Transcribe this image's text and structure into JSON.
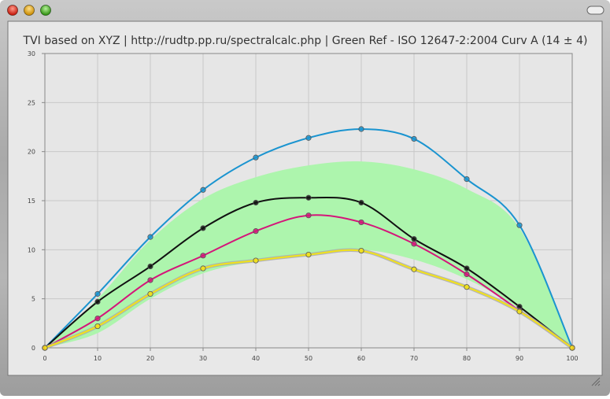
{
  "chart_data": {
    "type": "line",
    "title": "TVI based on XYZ | http://rudtp.pp.ru/spectralcalc.php | Green Ref - ISO 12647-2:2004 Curv A (14 ± 4)",
    "x": [
      0,
      10,
      20,
      30,
      40,
      50,
      60,
      70,
      80,
      90,
      100
    ],
    "xlim": [
      0,
      100
    ],
    "xticks": [
      0,
      10,
      20,
      30,
      40,
      50,
      60,
      70,
      80,
      90,
      100
    ],
    "ylim": [
      0,
      30
    ],
    "yticks": [
      0,
      5,
      10,
      15,
      20,
      25,
      30
    ],
    "grid": true,
    "band": {
      "color": "#adf5ad",
      "upper": [
        0,
        5.0,
        11.0,
        15.2,
        17.4,
        18.6,
        19.0,
        18.2,
        16.2,
        12.2,
        0
      ],
      "lower": [
        0,
        1.5,
        5.0,
        7.6,
        8.8,
        9.4,
        10.0,
        9.0,
        7.0,
        4.0,
        0
      ]
    },
    "series": [
      {
        "color": "#1a94d0",
        "values": [
          0,
          5.5,
          11.3,
          16.1,
          19.4,
          21.4,
          22.3,
          21.3,
          17.2,
          12.5,
          0
        ]
      },
      {
        "color": "#111111",
        "values": [
          0,
          4.7,
          8.3,
          12.2,
          14.8,
          15.3,
          14.8,
          11.1,
          8.1,
          4.2,
          0
        ]
      },
      {
        "color": "#d4157a",
        "values": [
          0,
          3.0,
          6.9,
          9.4,
          11.9,
          13.5,
          12.8,
          10.6,
          7.5,
          3.8,
          0
        ]
      },
      {
        "color": "#f2e21a",
        "values": [
          0,
          2.2,
          5.5,
          8.1,
          8.9,
          9.5,
          9.9,
          8.0,
          6.2,
          3.7,
          0
        ]
      }
    ]
  }
}
